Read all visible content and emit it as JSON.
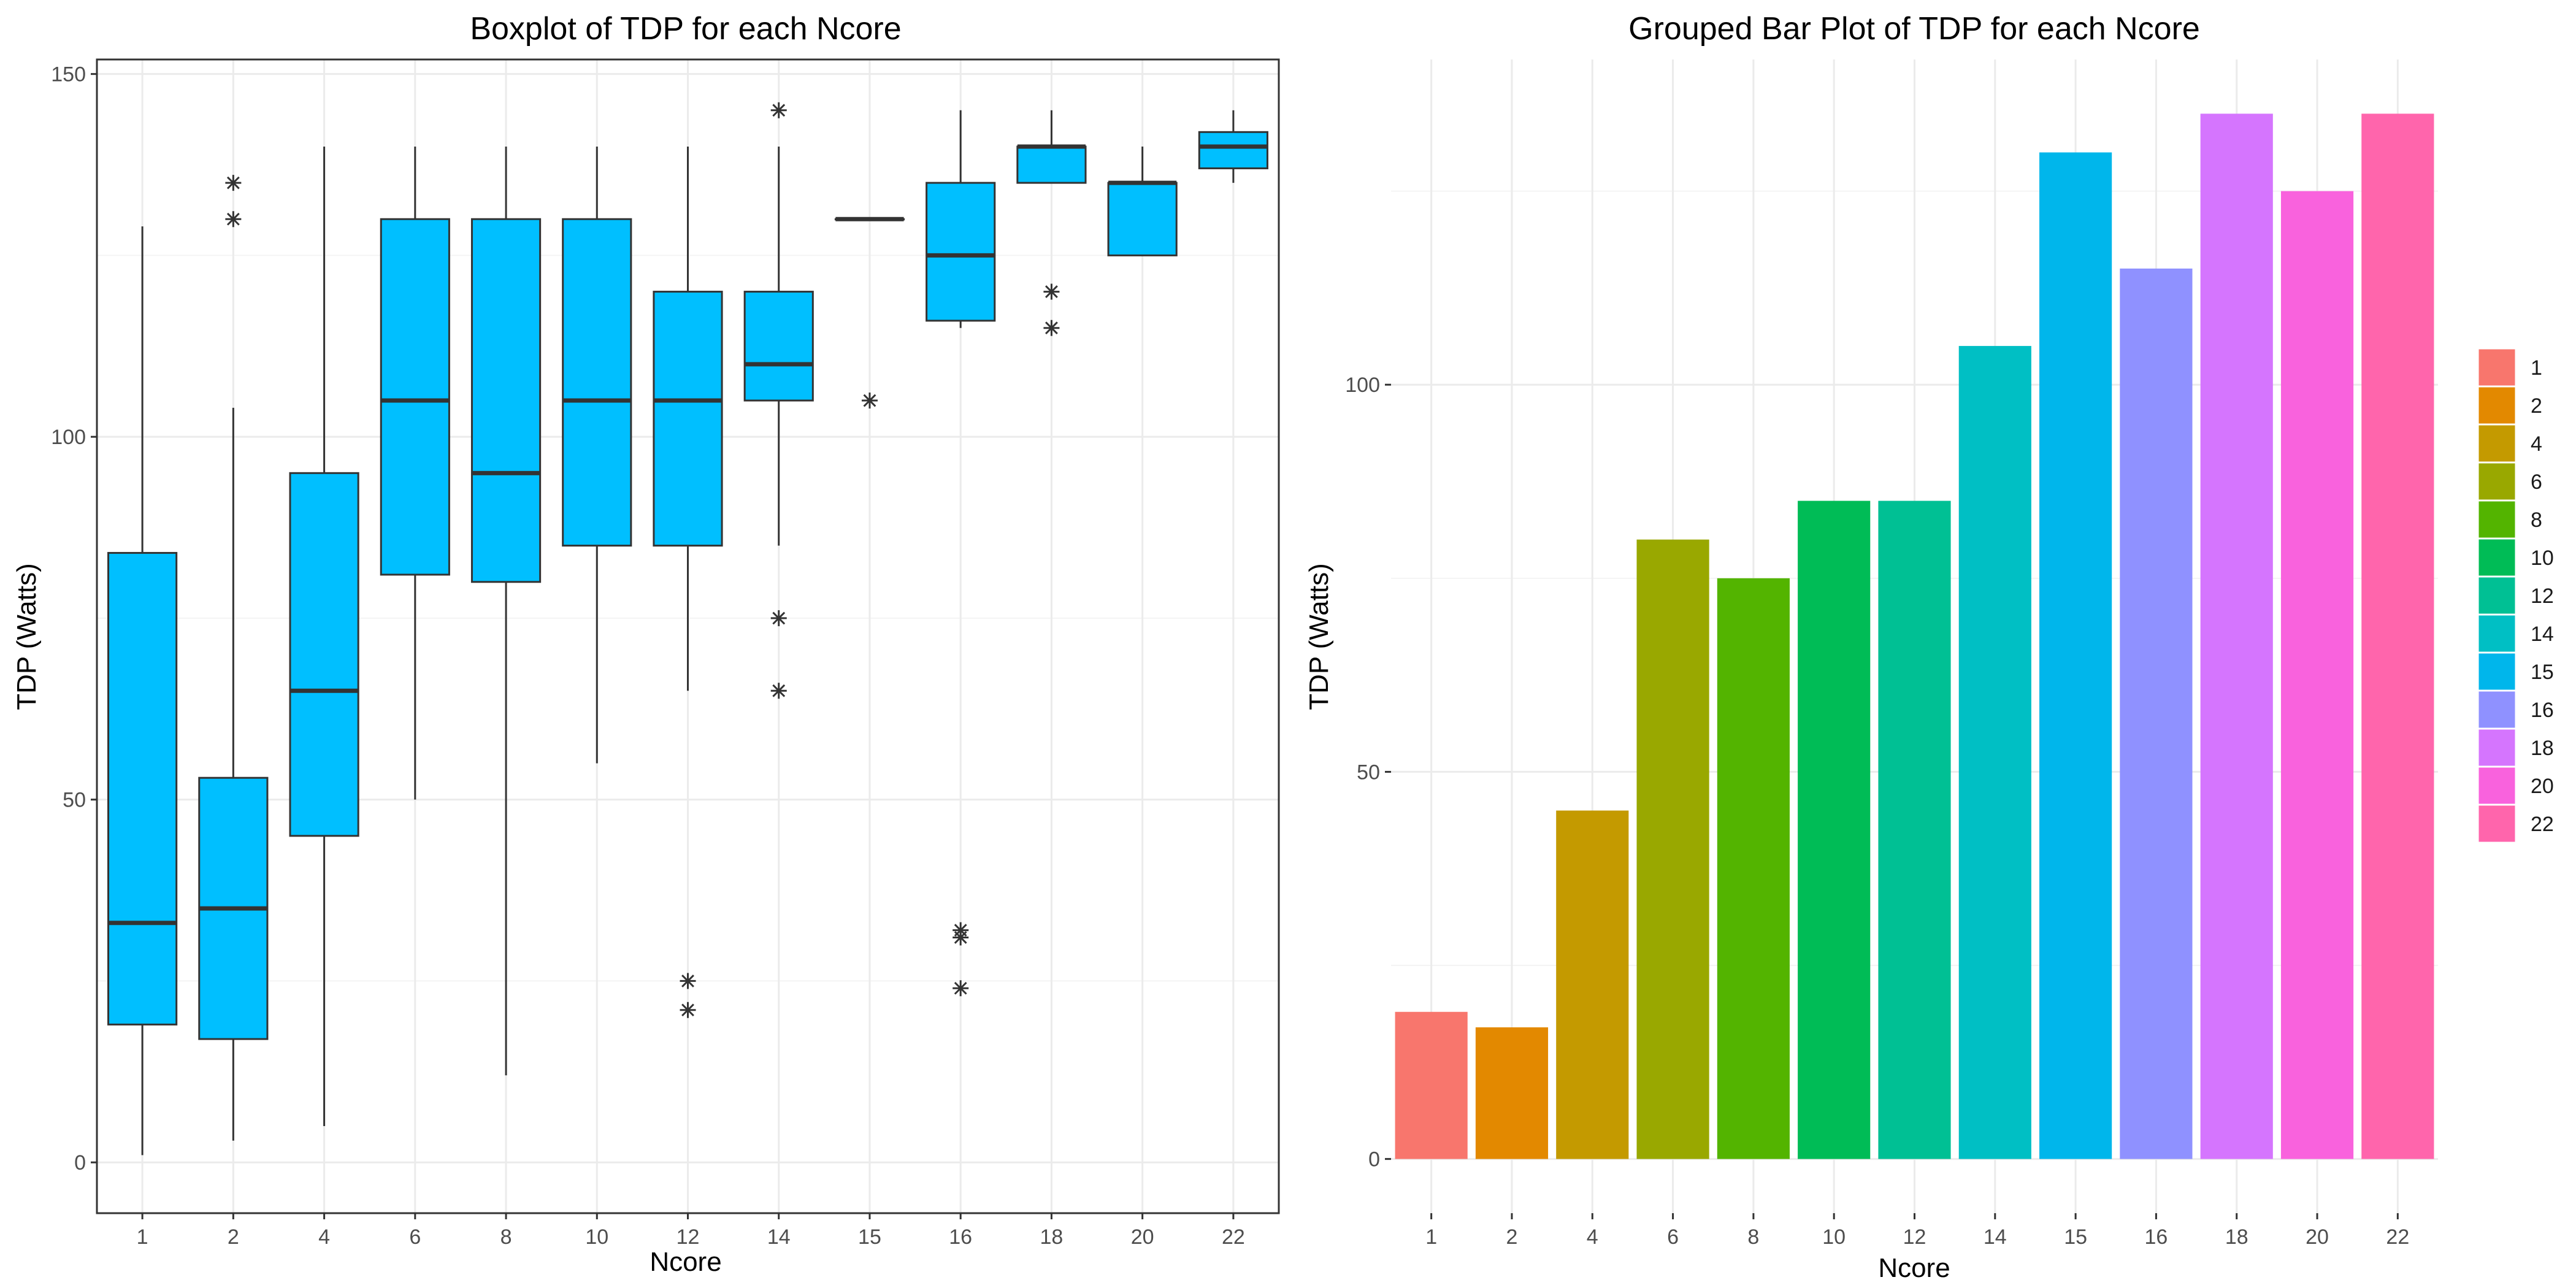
{
  "colors": {
    "box_fill": "#00BFFF",
    "box_stroke": "#333333",
    "bar_colors": [
      "#F8766D",
      "#E38900",
      "#C49A00",
      "#99A800",
      "#53B400",
      "#00BC56",
      "#00C094",
      "#00BFC4",
      "#00B6EB",
      "#8F91FF",
      "#D575FE",
      "#F962DD",
      "#FF65AC"
    ]
  },
  "chart_data": [
    {
      "type": "box",
      "title": "Boxplot of TDP for each Ncore",
      "xlabel": "Ncore",
      "ylabel": "TDP (Watts)",
      "categories": [
        "1",
        "2",
        "4",
        "6",
        "8",
        "10",
        "12",
        "14",
        "15",
        "16",
        "18",
        "20",
        "22"
      ],
      "ylim": [
        -7,
        152
      ],
      "yticks": [
        0,
        50,
        100,
        150
      ],
      "grid": true,
      "boxes": [
        {
          "min": 1,
          "q1": 19,
          "median": 33,
          "q3": 84,
          "max": 129,
          "outliers": []
        },
        {
          "min": 3,
          "q1": 17,
          "median": 35,
          "q3": 53,
          "max": 104,
          "outliers": [
            130,
            135
          ]
        },
        {
          "min": 5,
          "q1": 45,
          "median": 65,
          "q3": 95,
          "max": 140,
          "outliers": []
        },
        {
          "min": 50,
          "q1": 81,
          "median": 105,
          "q3": 130,
          "max": 140,
          "outliers": []
        },
        {
          "min": 12,
          "q1": 80,
          "median": 95,
          "q3": 130,
          "max": 140,
          "outliers": []
        },
        {
          "min": 55,
          "q1": 85,
          "median": 105,
          "q3": 130,
          "max": 140,
          "outliers": []
        },
        {
          "min": 65,
          "q1": 85,
          "median": 105,
          "q3": 120,
          "max": 140,
          "outliers": [
            21,
            25
          ]
        },
        {
          "min": 85,
          "q1": 105,
          "median": 110,
          "q3": 120,
          "max": 140,
          "outliers": [
            65,
            75,
            145
          ]
        },
        {
          "min": 130,
          "q1": 130,
          "median": 130,
          "q3": 130,
          "max": 130,
          "outliers": [
            105
          ]
        },
        {
          "min": 115,
          "q1": 116,
          "median": 125,
          "q3": 135,
          "max": 145,
          "outliers": [
            24,
            31,
            32
          ]
        },
        {
          "min": 135,
          "q1": 135,
          "median": 140,
          "q3": 140,
          "max": 145,
          "outliers": [
            115,
            120
          ]
        },
        {
          "min": 125,
          "q1": 125,
          "median": 135,
          "q3": 135,
          "max": 140,
          "outliers": []
        },
        {
          "min": 135,
          "q1": 137,
          "median": 140,
          "q3": 142,
          "max": 145,
          "outliers": []
        }
      ]
    },
    {
      "type": "bar",
      "title": "Grouped Bar Plot of TDP for each Ncore",
      "xlabel": "Ncore",
      "ylabel": "TDP (Watts)",
      "categories": [
        "1",
        "2",
        "4",
        "6",
        "8",
        "10",
        "12",
        "14",
        "15",
        "16",
        "18",
        "20",
        "22"
      ],
      "values": [
        19,
        17,
        45,
        80,
        75,
        85,
        85,
        105,
        130,
        115,
        135,
        125,
        135
      ],
      "ylim": [
        -7,
        142
      ],
      "yticks": [
        0,
        50,
        100
      ],
      "grid": true,
      "legend": {
        "placement": "right",
        "entries": [
          "1",
          "2",
          "4",
          "6",
          "8",
          "10",
          "12",
          "14",
          "15",
          "16",
          "18",
          "20",
          "22"
        ]
      }
    }
  ]
}
